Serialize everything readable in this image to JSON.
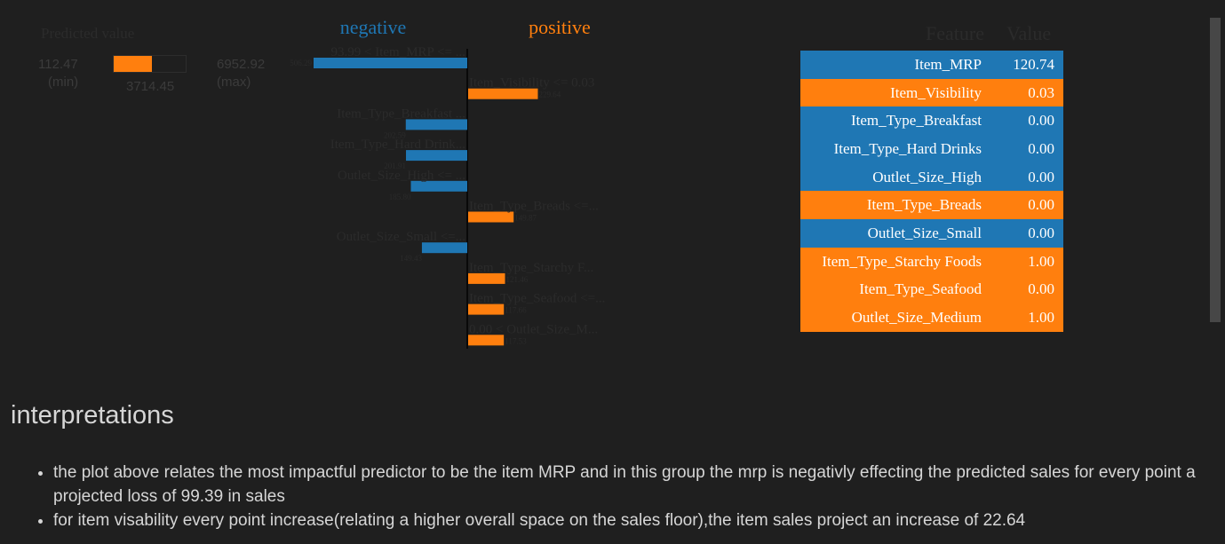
{
  "predicted": {
    "title": "Predicted value",
    "min_value": "112.47",
    "min_label": "(min)",
    "max_value": "6952.92",
    "max_label": "(max)",
    "value": "3714.45",
    "fraction": 0.53,
    "fill_color": "#ff7f0e"
  },
  "legend": {
    "negative": "negative",
    "positive": "positive",
    "negative_color": "#1f77b4",
    "positive_color": "#ff7f0e"
  },
  "chart_data": {
    "type": "bar",
    "orientation": "horizontal",
    "title": "",
    "negative_label": "negative",
    "positive_label": "positive",
    "features": [
      {
        "label": "93.99 < Item_MRP <= ...",
        "value": -506.29,
        "value_label": "506.29"
      },
      {
        "label": "Item_Visibility <= 0.03",
        "value": 229.64,
        "value_label": "229.64"
      },
      {
        "label": "Item_Type_Breakfast ...",
        "value": -202.59,
        "value_label": "202.59"
      },
      {
        "label": "Item_Type_Hard Drink...",
        "value": -201.91,
        "value_label": "201.91"
      },
      {
        "label": "Outlet_Size_High <= ...",
        "value": -185.8,
        "value_label": "185.80"
      },
      {
        "label": "Item_Type_Breads <=...",
        "value": 149.87,
        "value_label": "149.87"
      },
      {
        "label": "Outlet_Size_Small <=...",
        "value": -149.43,
        "value_label": "149.43"
      },
      {
        "label": "Item_Type_Starchy F...",
        "value": 121.46,
        "value_label": "121.46"
      },
      {
        "label": "Item_Type_Seafood <=...",
        "value": 117.66,
        "value_label": "117.66"
      },
      {
        "label": "0.00 < Outlet_Size_M...",
        "value": 117.53,
        "value_label": "117.53"
      }
    ]
  },
  "table": {
    "header_feature": "Feature",
    "header_value": "Value",
    "rows": [
      {
        "feature": "Item_MRP",
        "value": "120.74",
        "sign": "negative"
      },
      {
        "feature": "Item_Visibility",
        "value": "0.03",
        "sign": "positive"
      },
      {
        "feature": "Item_Type_Breakfast",
        "value": "0.00",
        "sign": "negative"
      },
      {
        "feature": "Item_Type_Hard Drinks",
        "value": "0.00",
        "sign": "negative"
      },
      {
        "feature": "Outlet_Size_High",
        "value": "0.00",
        "sign": "negative"
      },
      {
        "feature": "Item_Type_Breads",
        "value": "0.00",
        "sign": "positive"
      },
      {
        "feature": "Outlet_Size_Small",
        "value": "0.00",
        "sign": "negative"
      },
      {
        "feature": "Item_Type_Starchy Foods",
        "value": "1.00",
        "sign": "positive"
      },
      {
        "feature": "Item_Type_Seafood",
        "value": "0.00",
        "sign": "positive"
      },
      {
        "feature": "Outlet_Size_Medium",
        "value": "1.00",
        "sign": "positive"
      }
    ]
  },
  "interpretations": {
    "heading": "interpretations",
    "items": [
      "the plot above relates the most impactful predictor to be the item MRP and in this group the mrp is negativly effecting the predicted sales for every point a projected loss of 99.39 in sales",
      "for item visability every point increase(relating a higher overall space on the sales floor),the item sales project an increase of 22.64"
    ]
  }
}
